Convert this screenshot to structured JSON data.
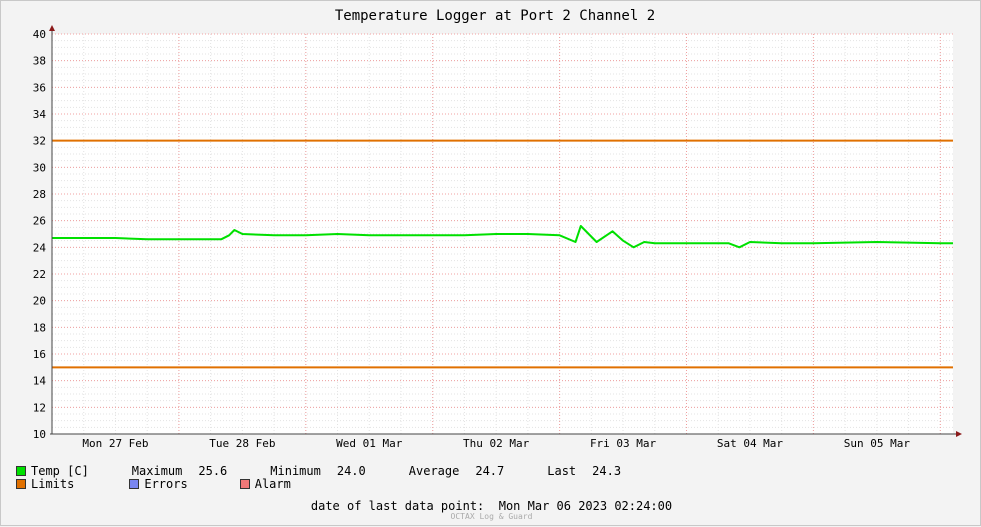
{
  "chart_data": {
    "type": "line",
    "title": "Temperature Logger at Port 2 Channel 2",
    "ylim": [
      10,
      40
    ],
    "yticks": [
      10,
      12,
      14,
      16,
      18,
      20,
      22,
      24,
      26,
      28,
      30,
      32,
      34,
      36,
      38,
      40
    ],
    "x_start": "Mon 27 Feb 00:00",
    "x_end": "Mon 06 Mar 02:24",
    "day_labels": [
      "Mon 27 Feb",
      "Tue 28 Feb",
      "Wed 01 Mar",
      "Thu 02 Mar",
      "Fri 03 Mar",
      "Sat 04 Mar",
      "Sun 05 Mar"
    ],
    "grid": true,
    "series": [
      {
        "name": "Temp [C]",
        "color": "#00e000",
        "points": [
          [
            "Mon 27 Feb 00:00",
            24.7
          ],
          [
            "Mon 27 Feb 06:00",
            24.7
          ],
          [
            "Mon 27 Feb 12:00",
            24.7
          ],
          [
            "Mon 27 Feb 18:00",
            24.6
          ],
          [
            "Tue 28 Feb 00:00",
            24.6
          ],
          [
            "Tue 28 Feb 06:00",
            24.6
          ],
          [
            "Tue 28 Feb 08:00",
            24.6
          ],
          [
            "Tue 28 Feb 09:30",
            24.9
          ],
          [
            "Tue 28 Feb 10:30",
            25.3
          ],
          [
            "Tue 28 Feb 12:00",
            25.0
          ],
          [
            "Tue 28 Feb 18:00",
            24.9
          ],
          [
            "Wed 01 Mar 00:00",
            24.9
          ],
          [
            "Wed 01 Mar 06:00",
            25.0
          ],
          [
            "Wed 01 Mar 12:00",
            24.9
          ],
          [
            "Wed 01 Mar 18:00",
            24.9
          ],
          [
            "Thu 02 Mar 00:00",
            24.9
          ],
          [
            "Thu 02 Mar 06:00",
            24.9
          ],
          [
            "Thu 02 Mar 12:00",
            25.0
          ],
          [
            "Thu 02 Mar 18:00",
            25.0
          ],
          [
            "Fri 03 Mar 00:00",
            24.9
          ],
          [
            "Fri 03 Mar 03:00",
            24.4
          ],
          [
            "Fri 03 Mar 04:00",
            25.6
          ],
          [
            "Fri 03 Mar 07:00",
            24.4
          ],
          [
            "Fri 03 Mar 10:00",
            25.2
          ],
          [
            "Fri 03 Mar 12:00",
            24.5
          ],
          [
            "Fri 03 Mar 14:00",
            24.0
          ],
          [
            "Fri 03 Mar 16:00",
            24.4
          ],
          [
            "Fri 03 Mar 18:00",
            24.3
          ],
          [
            "Sat 04 Mar 00:00",
            24.3
          ],
          [
            "Sat 04 Mar 08:00",
            24.3
          ],
          [
            "Sat 04 Mar 10:00",
            24.0
          ],
          [
            "Sat 04 Mar 12:00",
            24.4
          ],
          [
            "Sat 04 Mar 18:00",
            24.3
          ],
          [
            "Sun 05 Mar 00:00",
            24.3
          ],
          [
            "Sun 05 Mar 12:00",
            24.4
          ],
          [
            "Mon 06 Mar 00:00",
            24.3
          ],
          [
            "Mon 06 Mar 02:24",
            24.3
          ]
        ]
      },
      {
        "name": "Limits",
        "color": "#e07000",
        "values": [
          32,
          15
        ]
      }
    ]
  },
  "legend": {
    "temp_label": "Temp [C]",
    "max_label": "Maximum",
    "max_value": "25.6",
    "min_label": "Minimum",
    "min_value": "24.0",
    "avg_label": "Average",
    "avg_value": "24.7",
    "last_label": "Last",
    "last_value": "24.3",
    "limits_label": "Limits",
    "errors_label": "Errors",
    "alarm_label": "Alarm",
    "colors": {
      "temp": "#00e000",
      "limits": "#e07000",
      "errors": "#7a86f0",
      "alarm": "#f07878"
    }
  },
  "footer": {
    "label": "date of last data point:",
    "value": "Mon Mar 06 2023 02:24:00"
  },
  "credit": "OCTAX Log & Guard"
}
